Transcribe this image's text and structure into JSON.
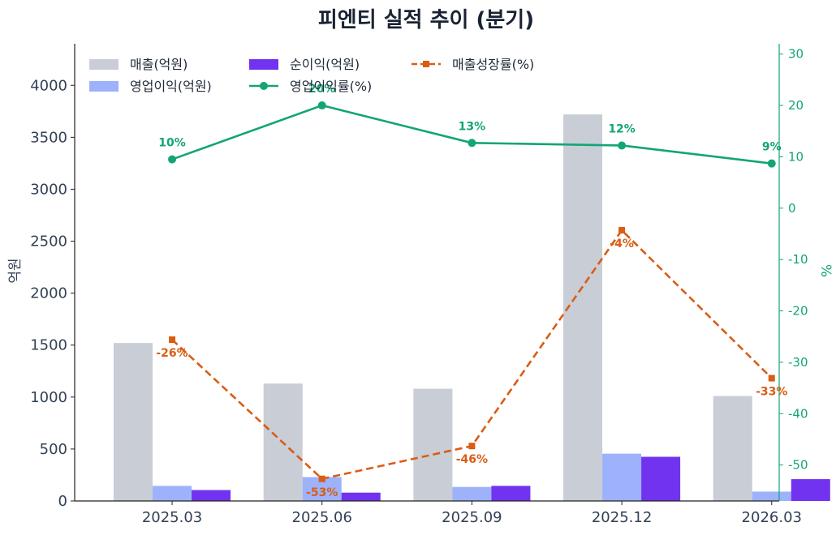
{
  "chart_data": {
    "type": "bar",
    "title": "피엔티 실적 추이 (분기)",
    "categories": [
      "2025.03",
      "2025.06",
      "2025.09",
      "2025.12",
      "2026.03"
    ],
    "ylabel": "억원",
    "y2label": "%",
    "ylim": [
      0,
      4400
    ],
    "y2lim": [
      -57,
      32
    ],
    "yticks": [
      0,
      500,
      1000,
      1500,
      2000,
      2500,
      3000,
      3500,
      4000
    ],
    "y2ticks": [
      -50,
      -40,
      -30,
      -20,
      -10,
      0,
      10,
      20,
      30
    ],
    "grid": false,
    "legend_position": "top-left",
    "bar_series": [
      {
        "name": "매출(억원)",
        "color": "#c8cdd6",
        "values": [
          1520,
          1130,
          1080,
          3720,
          1010
        ]
      },
      {
        "name": "영업이익(억원)",
        "color": "#9db2fb",
        "values": [
          145,
          230,
          135,
          455,
          90
        ]
      },
      {
        "name": "순이익(억원)",
        "color": "#7133f0",
        "values": [
          105,
          80,
          145,
          425,
          210
        ]
      }
    ],
    "line_series": [
      {
        "name": "영업이익률(%)",
        "color": "#13a574",
        "axis": "right",
        "style": "solid",
        "marker": "circle",
        "values": [
          9.5,
          20.0,
          12.7,
          12.2,
          8.7
        ],
        "labels": [
          "10%",
          "20%",
          "13%",
          "12%",
          "9%"
        ],
        "label_position": "above"
      },
      {
        "name": "매출성장률(%)",
        "color": "#d95d13",
        "axis": "right",
        "style": "dashed",
        "marker": "square",
        "values": [
          -25.6,
          -52.7,
          -46.3,
          -4.3,
          -33.1
        ],
        "labels": [
          "-26%",
          "-53%",
          "-46%",
          "-4%",
          "-33%"
        ],
        "label_position": "below"
      }
    ]
  }
}
